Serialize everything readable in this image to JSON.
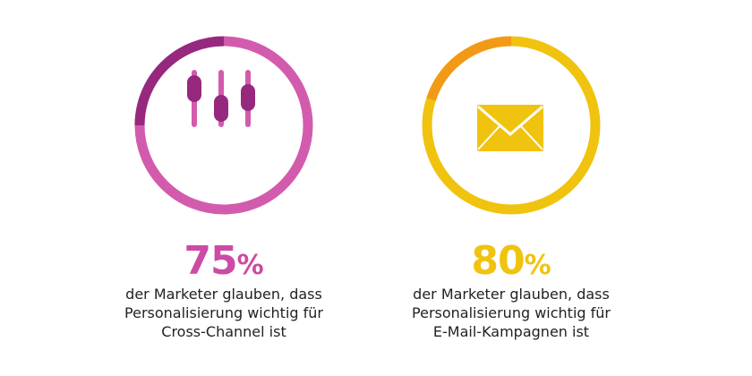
{
  "stats": [
    {
      "number": "75",
      "unit": "%",
      "progress": 0.25,
      "icon": "sliders-icon",
      "colors": {
        "ring": "#D35BAE",
        "ring_highlight": "#96287E",
        "icon_line": "#D35BAE",
        "icon_knob": "#96287E",
        "number": "#CC4BA4"
      },
      "caption_lines": [
        "der Marketer glauben, dass",
        "Personalisierung wichtig für",
        "Cross-Channel ist"
      ]
    },
    {
      "number": "80",
      "unit": "%",
      "progress": 0.2,
      "icon": "envelope-icon",
      "colors": {
        "ring": "#F0C30F",
        "ring_highlight": "#F29A16",
        "icon_fill": "#F0C30F",
        "icon_line": "#FFFFFF",
        "number": "#F0C30F"
      },
      "caption_lines": [
        "der Marketer glauben, dass",
        "Personalisierung wichtig für",
        "E-Mail-Kampagnen ist"
      ]
    }
  ]
}
